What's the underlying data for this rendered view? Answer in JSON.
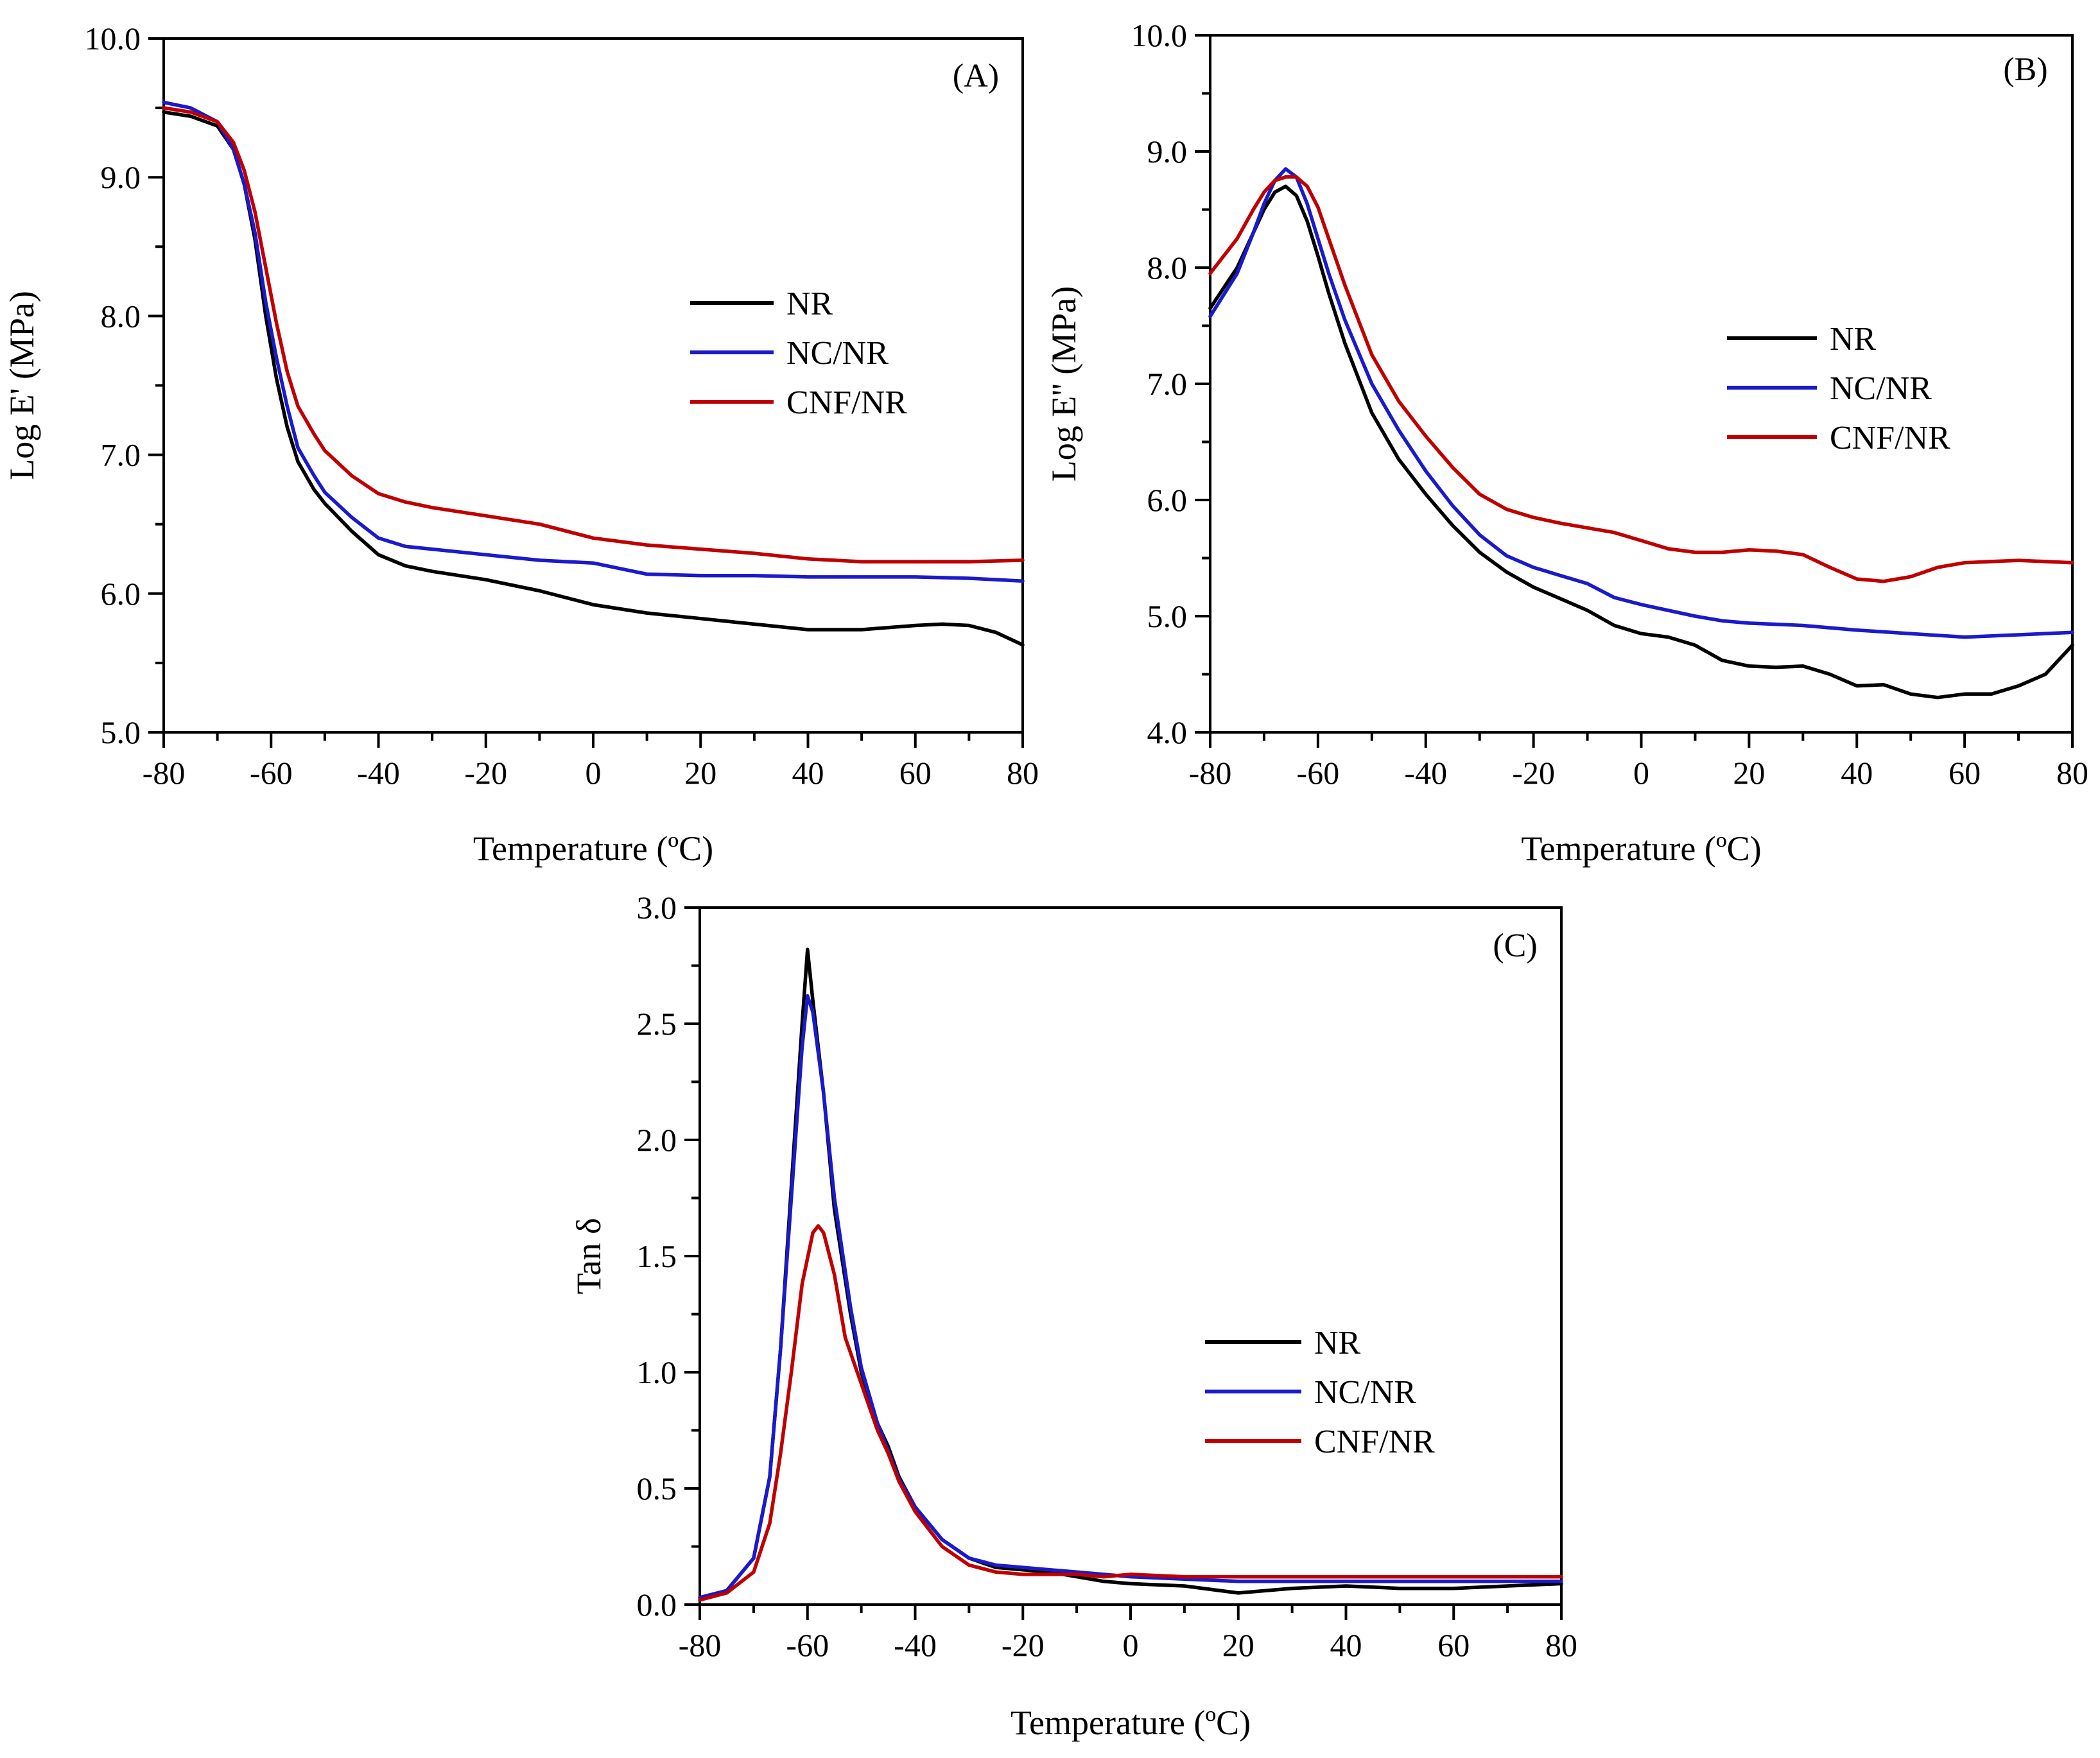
{
  "figure": {
    "panels": [
      "A",
      "B",
      "C"
    ]
  },
  "chart_data": [
    {
      "type": "line",
      "panel_label": "(A)",
      "xlabel": "Temperature (ºC)",
      "ylabel": "Log E' (MPa)",
      "xlim": [
        -80,
        80
      ],
      "ylim": [
        5.0,
        10.0
      ],
      "xticks": [
        -80,
        -60,
        -40,
        -20,
        0,
        20,
        40,
        60,
        80
      ],
      "yticks": [
        5.0,
        6.0,
        7.0,
        8.0,
        9.0,
        10.0
      ],
      "xtick_labels": [
        "-80",
        "-60",
        "-40",
        "-20",
        "0",
        "20",
        "40",
        "60",
        "80"
      ],
      "ytick_labels": [
        "5.0",
        "6.0",
        "7.0",
        "8.0",
        "9.0",
        "10.0"
      ],
      "legend_position": "center-right",
      "series": [
        {
          "name": "NR",
          "color": "#000000",
          "x": [
            -80,
            -75,
            -70,
            -67,
            -65,
            -63,
            -61,
            -59,
            -57,
            -55,
            -52,
            -50,
            -45,
            -40,
            -35,
            -30,
            -20,
            -10,
            0,
            10,
            20,
            30,
            40,
            50,
            60,
            65,
            70,
            75,
            80
          ],
          "y": [
            9.47,
            9.44,
            9.37,
            9.2,
            8.95,
            8.55,
            8.0,
            7.55,
            7.2,
            6.95,
            6.75,
            6.65,
            6.45,
            6.28,
            6.2,
            6.16,
            6.1,
            6.02,
            5.92,
            5.86,
            5.82,
            5.78,
            5.74,
            5.74,
            5.77,
            5.78,
            5.77,
            5.72,
            5.63
          ]
        },
        {
          "name": "NC/NR",
          "color": "#1a1acc",
          "x": [
            -80,
            -75,
            -70,
            -67,
            -65,
            -63,
            -61,
            -59,
            -57,
            -55,
            -52,
            -50,
            -45,
            -40,
            -35,
            -30,
            -20,
            -10,
            0,
            10,
            20,
            30,
            40,
            50,
            60,
            70,
            80
          ],
          "y": [
            9.54,
            9.5,
            9.4,
            9.2,
            8.95,
            8.6,
            8.1,
            7.7,
            7.35,
            7.05,
            6.85,
            6.73,
            6.55,
            6.4,
            6.34,
            6.32,
            6.28,
            6.24,
            6.22,
            6.14,
            6.13,
            6.13,
            6.12,
            6.12,
            6.12,
            6.11,
            6.09
          ]
        },
        {
          "name": "CNF/NR",
          "color": "#c00000",
          "x": [
            -80,
            -75,
            -70,
            -67,
            -65,
            -63,
            -61,
            -59,
            -57,
            -55,
            -52,
            -50,
            -45,
            -40,
            -35,
            -30,
            -20,
            -10,
            0,
            10,
            20,
            30,
            40,
            50,
            60,
            70,
            80
          ],
          "y": [
            9.5,
            9.47,
            9.4,
            9.25,
            9.05,
            8.75,
            8.35,
            7.95,
            7.6,
            7.35,
            7.15,
            7.03,
            6.85,
            6.72,
            6.66,
            6.62,
            6.56,
            6.5,
            6.4,
            6.35,
            6.32,
            6.29,
            6.25,
            6.23,
            6.23,
            6.23,
            6.24
          ]
        }
      ]
    },
    {
      "type": "line",
      "panel_label": "(B)",
      "xlabel": "Temperature (ºC)",
      "ylabel": "Log E'' (MPa)",
      "xlim": [
        -80,
        80
      ],
      "ylim": [
        4.0,
        10.0
      ],
      "xticks": [
        -80,
        -60,
        -40,
        -20,
        0,
        20,
        40,
        60,
        80
      ],
      "yticks": [
        4.0,
        5.0,
        6.0,
        7.0,
        8.0,
        9.0,
        10.0
      ],
      "xtick_labels": [
        "-80",
        "-60",
        "-40",
        "-20",
        "0",
        "20",
        "40",
        "60",
        "80"
      ],
      "ytick_labels": [
        "4.0",
        "5.0",
        "6.0",
        "7.0",
        "8.0",
        "9.0",
        "10.0"
      ],
      "legend_position": "center-right",
      "series": [
        {
          "name": "NR",
          "color": "#000000",
          "x": [
            -80,
            -75,
            -72,
            -70,
            -68,
            -66,
            -64,
            -62,
            -60,
            -58,
            -55,
            -50,
            -45,
            -40,
            -35,
            -30,
            -25,
            -20,
            -15,
            -10,
            -5,
            0,
            5,
            10,
            15,
            20,
            25,
            30,
            35,
            40,
            45,
            50,
            55,
            60,
            65,
            70,
            75,
            80
          ],
          "y": [
            7.65,
            8.0,
            8.3,
            8.5,
            8.65,
            8.7,
            8.62,
            8.4,
            8.1,
            7.78,
            7.35,
            6.75,
            6.35,
            6.05,
            5.78,
            5.55,
            5.38,
            5.25,
            5.15,
            5.05,
            4.92,
            4.85,
            4.82,
            4.75,
            4.62,
            4.57,
            4.56,
            4.57,
            4.5,
            4.4,
            4.41,
            4.33,
            4.3,
            4.33,
            4.33,
            4.4,
            4.5,
            4.75
          ]
        },
        {
          "name": "NC/NR",
          "color": "#1a1acc",
          "x": [
            -80,
            -75,
            -72,
            -70,
            -68,
            -66,
            -64,
            -62,
            -60,
            -58,
            -55,
            -50,
            -45,
            -40,
            -35,
            -30,
            -25,
            -20,
            -15,
            -10,
            -5,
            0,
            5,
            10,
            15,
            20,
            30,
            40,
            50,
            60,
            70,
            80
          ],
          "y": [
            7.58,
            7.95,
            8.3,
            8.55,
            8.75,
            8.85,
            8.78,
            8.55,
            8.25,
            7.95,
            7.55,
            7.0,
            6.6,
            6.25,
            5.95,
            5.7,
            5.52,
            5.42,
            5.35,
            5.28,
            5.16,
            5.1,
            5.05,
            5.0,
            4.96,
            4.94,
            4.92,
            4.88,
            4.85,
            4.82,
            4.84,
            4.86
          ]
        },
        {
          "name": "CNF/NR",
          "color": "#c00000",
          "x": [
            -80,
            -75,
            -72,
            -70,
            -68,
            -66,
            -64,
            -62,
            -60,
            -58,
            -55,
            -50,
            -45,
            -40,
            -35,
            -30,
            -25,
            -20,
            -15,
            -10,
            -5,
            0,
            5,
            10,
            15,
            20,
            25,
            30,
            35,
            40,
            45,
            50,
            55,
            60,
            65,
            70,
            75,
            80
          ],
          "y": [
            7.95,
            8.25,
            8.5,
            8.65,
            8.75,
            8.78,
            8.78,
            8.7,
            8.52,
            8.25,
            7.85,
            7.25,
            6.85,
            6.55,
            6.28,
            6.05,
            5.92,
            5.85,
            5.8,
            5.76,
            5.72,
            5.65,
            5.58,
            5.55,
            5.55,
            5.57,
            5.56,
            5.53,
            5.42,
            5.32,
            5.3,
            5.34,
            5.42,
            5.46,
            5.47,
            5.48,
            5.47,
            5.46
          ]
        }
      ]
    },
    {
      "type": "line",
      "panel_label": "(C)",
      "xlabel": "Temperature (ºC)",
      "ylabel": "Tan δ",
      "xlim": [
        -80,
        80
      ],
      "ylim": [
        0.0,
        3.0
      ],
      "xticks": [
        -80,
        -60,
        -40,
        -20,
        0,
        20,
        40,
        60,
        80
      ],
      "yticks": [
        0.0,
        0.5,
        1.0,
        1.5,
        2.0,
        2.5,
        3.0
      ],
      "xtick_labels": [
        "-80",
        "-60",
        "-40",
        "-20",
        "0",
        "20",
        "40",
        "60",
        "80"
      ],
      "ytick_labels": [
        "0.0",
        "0.5",
        "1.0",
        "1.5",
        "2.0",
        "2.5",
        "3.0"
      ],
      "legend_position": "center-right",
      "series": [
        {
          "name": "NR",
          "color": "#000000",
          "x": [
            -80,
            -75,
            -70,
            -67,
            -65,
            -63,
            -61,
            -60,
            -59,
            -57,
            -55,
            -52,
            -50,
            -47,
            -45,
            -43,
            -40,
            -35,
            -30,
            -25,
            -20,
            -15,
            -10,
            -5,
            0,
            10,
            20,
            30,
            40,
            50,
            60,
            70,
            80
          ],
          "y": [
            0.03,
            0.06,
            0.2,
            0.55,
            1.1,
            1.8,
            2.5,
            2.82,
            2.6,
            2.2,
            1.7,
            1.25,
            1.0,
            0.78,
            0.68,
            0.55,
            0.42,
            0.28,
            0.2,
            0.16,
            0.15,
            0.14,
            0.12,
            0.1,
            0.09,
            0.08,
            0.05,
            0.07,
            0.08,
            0.07,
            0.07,
            0.08,
            0.09
          ]
        },
        {
          "name": "NC/NR",
          "color": "#1a1acc",
          "x": [
            -80,
            -75,
            -70,
            -67,
            -65,
            -63,
            -61,
            -60,
            -59,
            -57,
            -55,
            -52,
            -50,
            -47,
            -45,
            -43,
            -40,
            -35,
            -30,
            -25,
            -20,
            -15,
            -10,
            -5,
            0,
            10,
            20,
            30,
            40,
            50,
            60,
            70,
            80
          ],
          "y": [
            0.03,
            0.06,
            0.2,
            0.55,
            1.1,
            1.75,
            2.4,
            2.62,
            2.55,
            2.2,
            1.75,
            1.28,
            1.02,
            0.78,
            0.66,
            0.54,
            0.42,
            0.28,
            0.2,
            0.17,
            0.16,
            0.15,
            0.14,
            0.13,
            0.12,
            0.11,
            0.1,
            0.1,
            0.1,
            0.1,
            0.1,
            0.1,
            0.1
          ]
        },
        {
          "name": "CNF/NR",
          "color": "#c00000",
          "x": [
            -80,
            -75,
            -70,
            -67,
            -65,
            -63,
            -61,
            -59,
            -58,
            -57,
            -55,
            -53,
            -50,
            -47,
            -45,
            -43,
            -40,
            -35,
            -30,
            -25,
            -20,
            -15,
            -10,
            -5,
            0,
            10,
            20,
            30,
            40,
            50,
            60,
            70,
            80
          ],
          "y": [
            0.02,
            0.05,
            0.14,
            0.35,
            0.65,
            1.0,
            1.38,
            1.6,
            1.63,
            1.6,
            1.42,
            1.15,
            0.95,
            0.75,
            0.65,
            0.53,
            0.4,
            0.25,
            0.17,
            0.14,
            0.13,
            0.13,
            0.13,
            0.12,
            0.13,
            0.12,
            0.12,
            0.12,
            0.12,
            0.12,
            0.12,
            0.12,
            0.12
          ]
        }
      ]
    }
  ]
}
